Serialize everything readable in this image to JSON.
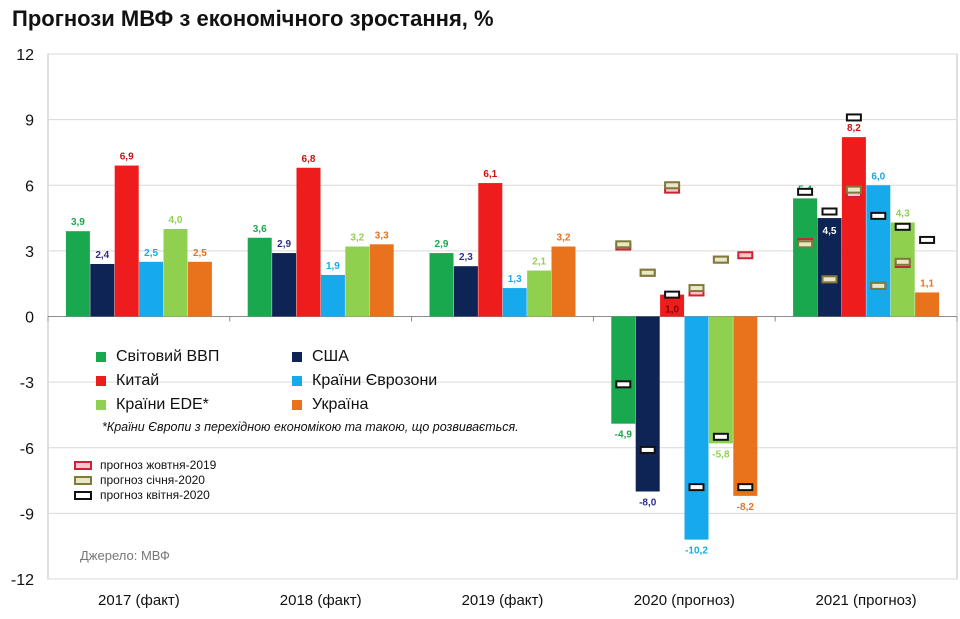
{
  "chart_data": {
    "type": "bar",
    "title": "Прогнози МВФ з економічного зростання, %",
    "xlabel": "",
    "ylabel": "",
    "ylim": [
      -12,
      12
    ],
    "yticks": [
      12,
      9,
      6,
      3,
      0,
      -3,
      -6,
      -9,
      -12
    ],
    "grid": true,
    "categories": [
      "2017 (факт)",
      "2018 (факт)",
      "2019 (факт)",
      "2020 (прогноз)",
      "2021 (прогноз)"
    ],
    "series": [
      {
        "name": "Світовий ВВП",
        "color": "#1aa84e",
        "values": [
          3.9,
          3.6,
          2.9,
          -4.9,
          5.4
        ],
        "labels": [
          "3,9",
          "3,6",
          "2,9",
          "-4,9",
          "5,4"
        ]
      },
      {
        "name": "США",
        "color": "#0d2454",
        "values": [
          2.4,
          2.9,
          2.3,
          -8.0,
          4.5
        ],
        "labels": [
          "2,4",
          "2,9",
          "2,3",
          "-8,0",
          "4,5"
        ]
      },
      {
        "name": "Китай",
        "color": "#ee1c1c",
        "values": [
          6.9,
          6.8,
          6.1,
          1.0,
          8.2
        ],
        "labels": [
          "6,9",
          "6,8",
          "6,1",
          "1,0",
          "8,2"
        ]
      },
      {
        "name": "Країни Єврозони",
        "color": "#16a9ec",
        "values": [
          2.5,
          1.9,
          1.3,
          -10.2,
          6.0
        ],
        "labels": [
          "2,5",
          "1,9",
          "1,3",
          "-10,2",
          "6,0"
        ]
      },
      {
        "name": "Країни EDE*",
        "color": "#8fd14f",
        "values": [
          4.0,
          3.2,
          2.1,
          -5.8,
          4.3
        ],
        "labels": [
          "4,0",
          "3,2",
          "2,1",
          "-5,8",
          "4,3"
        ]
      },
      {
        "name": "Україна",
        "color": "#e8731c",
        "values": [
          2.5,
          3.3,
          3.2,
          -8.2,
          1.1
        ],
        "labels": [
          "2,5",
          "3,3",
          "3,2",
          "-8,2",
          "1,1"
        ]
      }
    ],
    "label_colors": [
      "#1aa84e",
      "#2e2e8a",
      "#cc1010",
      "#16a9ec",
      "#8fd14f",
      "#e8731c"
    ],
    "forecast_markers": [
      {
        "name": "прогноз жовтня-2019",
        "style": "red",
        "values": {
          "2020 (прогноз)": [
            3.2,
            2.0,
            5.8,
            1.1,
            2.6,
            2.8
          ],
          "2021 (прогноз)": [
            3.4,
            1.7,
            5.6,
            1.4,
            2.4,
            null
          ]
        }
      },
      {
        "name": "прогноз січня-2020",
        "style": "olive",
        "values": {
          "2020 (прогноз)": [
            3.3,
            2.0,
            6.0,
            1.3,
            2.6,
            null
          ],
          "2021 (прогноз)": [
            3.3,
            1.7,
            5.8,
            1.4,
            2.5,
            null
          ]
        }
      },
      {
        "name": "прогноз квітня-2020",
        "style": "black",
        "values": {
          "2020 (прогноз)": [
            -3.1,
            -6.1,
            1.0,
            -7.8,
            -5.5,
            -7.8
          ],
          "2021 (прогноз)": [
            5.7,
            4.8,
            9.1,
            4.6,
            4.1,
            3.5
          ]
        }
      }
    ],
    "legend_note": "*Країни Європи з перехідною економікою та такою, що розвивається.",
    "source": "Джерело: МВФ"
  }
}
